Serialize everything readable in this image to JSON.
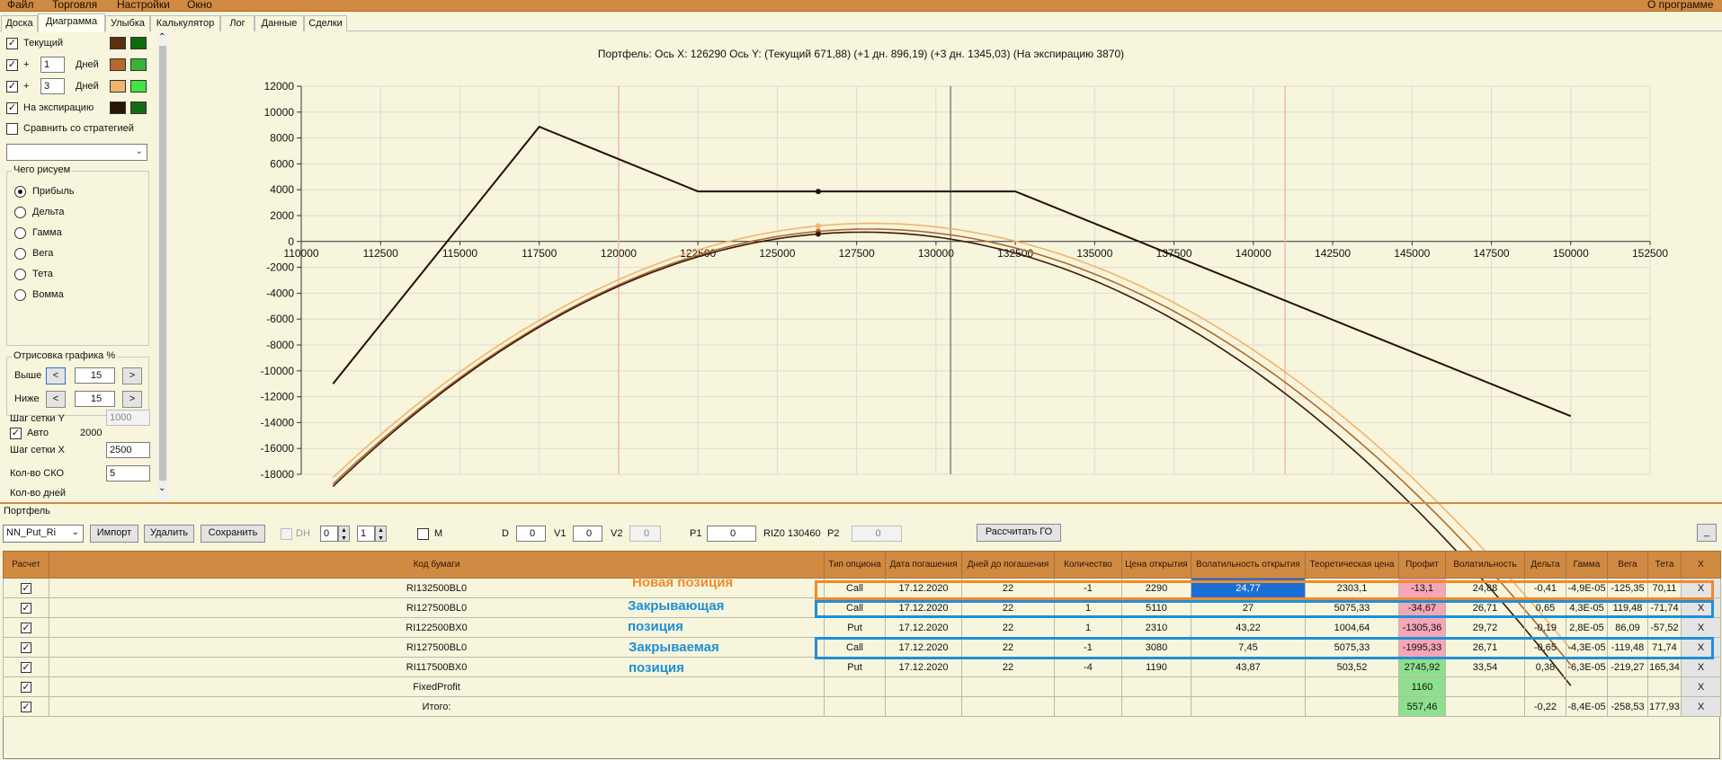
{
  "menu": {
    "file": "Файл",
    "trading": "Торговля",
    "settings": "Настройки",
    "window": "Окно",
    "about": "О программе"
  },
  "tabs": [
    "Доска",
    "Диаграмма",
    "Улыбка",
    "Калькулятор",
    "Лог",
    "Данные",
    "Сделки"
  ],
  "sidebar": {
    "current_label": "Текущий",
    "plus": "+",
    "days_label": "Дней",
    "days1": "1",
    "days2": "3",
    "expiry_label": "На экспирацию",
    "compare_label": "Сравнить со стратегией",
    "draw_group_title": "Чего рисуем",
    "draw_options": [
      "Прибыль",
      "Дельта",
      "Гамма",
      "Вега",
      "Тета",
      "Вомма"
    ],
    "range_group_title": "Отрисовка графика %",
    "above_label": "Выше",
    "below_label": "Ниже",
    "above_value": "15",
    "below_value": "15",
    "btn_left": "<",
    "btn_right": ">",
    "grid_y_label": "Шаг сетки Y",
    "grid_y_value": "1000",
    "auto_label": "Авто",
    "auto_value": "2000",
    "grid_x_label": "Шаг сетки X",
    "grid_x_value": "2500",
    "sko_label": "Кол-во СКО",
    "sko_value": "5",
    "days_cut_label": "Кол-во дней",
    "swatch_colors": [
      [
        "#5b2f0f",
        "#0d6b0d"
      ],
      [
        "#b56a2d",
        "#35b535"
      ],
      [
        "#f2b36a",
        "#44e444"
      ],
      [
        "#2a1406",
        "#156b15"
      ]
    ]
  },
  "chart_title": "Портфель:  Ось X:  126290 Ось Y:   (Текущий 671,88)  (+1 дн. 896,19)  (+3 дн. 1345,03)  (На экспирацию 3870)",
  "chart_data": {
    "type": "line",
    "x_ticks": [
      "110000",
      "112500",
      "115000",
      "117500",
      "120000",
      "122500",
      "125000",
      "127500",
      "130000",
      "132500",
      "135000",
      "137500",
      "140000",
      "142500",
      "145000",
      "147500",
      "150000",
      "152500"
    ],
    "y_ticks": [
      "12000",
      "10000",
      "8000",
      "6000",
      "4000",
      "2000",
      "0",
      "-2000",
      "-4000",
      "-6000",
      "-8000",
      "-10000",
      "-12000",
      "-14000",
      "-16000",
      "-18000"
    ],
    "xlim": [
      110000,
      152500
    ],
    "ylim": [
      -18000,
      12000
    ],
    "grid": true,
    "cursor_x": 130460,
    "markers_x": [
      120000,
      141000
    ],
    "current_x": 126290,
    "series": [
      {
        "name": "На экспирацию",
        "color": "#231006",
        "points": [
          [
            111000,
            -11000
          ],
          [
            117500,
            8870
          ],
          [
            122500,
            3870
          ],
          [
            132500,
            3870
          ],
          [
            150000,
            -13500
          ]
        ]
      },
      {
        "name": "Текущий",
        "color": "#3a1a08",
        "curve": {
          "x0": 111000,
          "x1": 150000,
          "peak_x": 127700,
          "peak_y": 720,
          "k": 7.05e-05
        }
      },
      {
        "name": "+1 дн.",
        "color": "#b0682b",
        "curve": {
          "x0": 111000,
          "x1": 150000,
          "peak_x": 127900,
          "peak_y": 960,
          "k": 6.9e-05
        }
      },
      {
        "name": "+3 дн.",
        "color": "#f3b46b",
        "curve": {
          "x0": 111000,
          "x1": 150000,
          "peak_x": 128000,
          "peak_y": 1400,
          "k": 6.8e-05
        }
      }
    ]
  },
  "toolbar": {
    "portfolio_label": "Портфель",
    "strategy_value": "NN_Put_Ri",
    "import": "Импорт",
    "delete": "Удалить",
    "save": "Сохранить",
    "dh": "DH",
    "spin1": "0",
    "spin2": "1",
    "m": "M",
    "d_label": "D",
    "d_value": "0",
    "v1_label": "V1",
    "v1_value": "0",
    "v2_label": "V2",
    "v2_value": "0",
    "p1_label": "P1",
    "p1_value": "0",
    "instrument": "RIZ0 130460",
    "p2_label": "P2",
    "p2_value": "0",
    "calc_go": "Рассчитать ГО",
    "minimize": "_"
  },
  "table": {
    "headers": [
      "Расчет",
      "Код бумаги",
      "Тип опциона",
      "Дата погашения",
      "Дней до погашения",
      "Количество",
      "Цена открытия",
      "Волатильность открытия",
      "Теоретическая цена",
      "Профит",
      "Волатильность",
      "Дельта",
      "Гамма",
      "Вега",
      "Тета",
      "X"
    ],
    "rows": [
      [
        "RI132500BL0",
        "Call",
        "17.12.2020",
        "22",
        "-1",
        "2290",
        "24,77",
        "2303,1",
        "-13,1",
        "24,88",
        "-0,41",
        "-4,9E-05",
        "-125,35",
        "70,11",
        "X"
      ],
      [
        "RI127500BL0",
        "Call",
        "17.12.2020",
        "22",
        "1",
        "5110",
        "27",
        "5075,33",
        "-34,67",
        "26,71",
        "0,65",
        "4,3E-05",
        "119,48",
        "-71,74",
        "X"
      ],
      [
        "RI122500BX0",
        "Put",
        "17.12.2020",
        "22",
        "1",
        "2310",
        "43,22",
        "1004,64",
        "-1305,36",
        "29,72",
        "-0,19",
        "2,8E-05",
        "86,09",
        "-57,52",
        "X"
      ],
      [
        "RI127500BL0",
        "Call",
        "17.12.2020",
        "22",
        "-1",
        "3080",
        "7,45",
        "5075,33",
        "-1995,33",
        "26,71",
        "-0,65",
        "-4,3E-05",
        "-119,48",
        "71,74",
        "X"
      ],
      [
        "RI117500BX0",
        "Put",
        "17.12.2020",
        "22",
        "-4",
        "1190",
        "43,87",
        "503,52",
        "2745,92",
        "33,54",
        "0,38",
        "-6,3E-05",
        "-219,27",
        "165,34",
        "X"
      ],
      [
        "FixedProfit",
        "",
        "",
        "",
        "",
        "",
        "",
        "",
        "1160",
        "",
        "",
        "",
        "",
        "",
        "X"
      ],
      [
        "Итого:",
        "",
        "",
        "",
        "",
        "",
        "",
        "",
        "557,46",
        "",
        "-0,22",
        "-8,4E-05",
        "-258,53",
        "177,93",
        "X"
      ]
    ],
    "profit_colors": [
      "#f4a6b8",
      "#f4a6b8",
      "#f4a6b8",
      "#f4a6b8",
      "#8ee08e",
      "#8ee08e",
      "#8ee08e"
    ],
    "vol_selected_color": "#1a6fd6"
  },
  "annotations": {
    "new": "Новая позиция",
    "closing1": "Закрывающая",
    "closing2": "позиция",
    "closed1": "Закрываемая",
    "closed2": "позиция",
    "orange": "#f08a2a",
    "blue": "#1e8fd6"
  }
}
